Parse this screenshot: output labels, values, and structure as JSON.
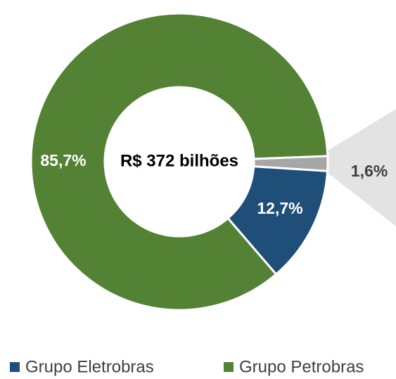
{
  "chart_data": {
    "type": "pie",
    "center_label": "R$ 372 bilhões",
    "categories": [
      "Grupo Eletrobras",
      "Grupo Petrobras",
      null
    ],
    "values": [
      12.7,
      85.7,
      1.6
    ],
    "value_labels": [
      "12,7%",
      "85,7%",
      "1,6%"
    ],
    "colors": [
      "#1f4e79",
      "#548235",
      "#a6a6a6"
    ],
    "donut": true,
    "legend": "bottom"
  }
}
